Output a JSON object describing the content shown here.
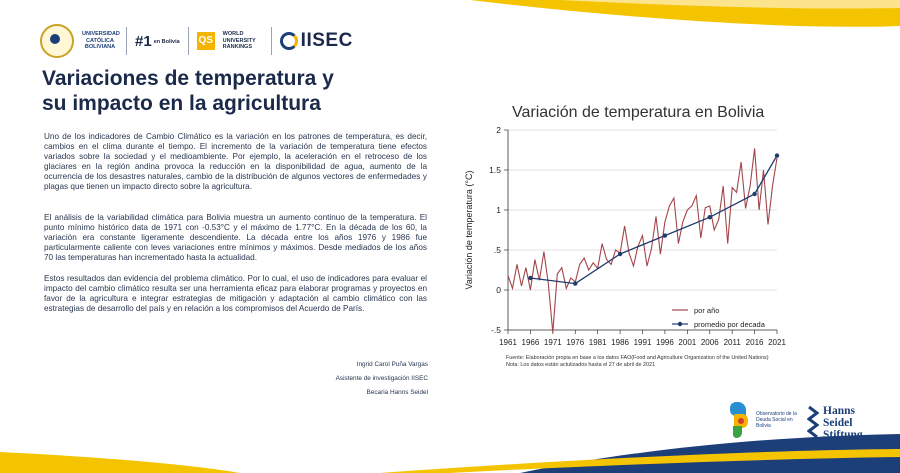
{
  "header": {
    "ucb_name": "UNIVERSIDAD CATÓLICA BOLIVIANA",
    "rank_number": "#1",
    "rank_place": "en Bolivia",
    "qs_badge": "QS",
    "qs_text": "WORLD UNIVERSITY RANKINGS",
    "institute": "IISEC"
  },
  "article": {
    "title_line1": "Variaciones de temperatura y",
    "title_line2": "su impacto en la agricultura",
    "paragraphs": [
      "Uno de los indicadores de Cambio Climático es la variación en los patrones de temperatura, es decir, cambios en el clima durante el tiempo. El incremento de la variación de temperatura tiene efectos variados sobre la sociedad y el medioambiente. Por ejemplo, la aceleración en el retroceso de los glaciares en la región andina provoca la reducción en la disponibilidad de agua, aumento de la ocurrencia de los desastres naturales, cambio de la distribución de algunos vectores de enfermedades y plagas que tienen un impacto directo sobre la agricultura.",
      "El análisis de la variabilidad climática para Bolivia muestra un aumento continuo de la temperatura. El punto mínimo histórico data de 1971 con -0.53°C y el máximo de 1.77°C. En la década de los 60, la variación era constante ligeramente descendiente. La década entre los años 1976 y 1986 fue particularmente caliente con leves variaciones entre mínimos y máximos. Desde mediados de los años 70 las temperaturas han incrementado hasta la actualidad.",
      "Estos resultados dan evidencia del problema climático. Por lo cual, el uso de indicadores para evaluar el impacto del cambio climático resulta ser una herramienta eficaz para elaborar programas y proyectos en favor de la agricultura e integrar estrategias de mitigación y adaptación al cambio climático con las estrategias de desarrollo del país y en relación a los compromisos del Acuerdo de París."
    ],
    "author": "Ingrid Carol Puña Vargas",
    "role": "Asistente de investigación IISEC",
    "fellowship": "Becaria Hanns Seidel"
  },
  "chart_data": {
    "type": "line",
    "title": "Variación de temperatura en Bolivia",
    "xlabel": "",
    "ylabel": "Variación de temperatura (°C)",
    "xlim": [
      1961,
      2021
    ],
    "ylim": [
      -0.5,
      2
    ],
    "xticks": [
      1961,
      1966,
      1971,
      1976,
      1981,
      1986,
      1991,
      1996,
      2001,
      2006,
      2011,
      2016,
      2021
    ],
    "yticks": [
      -0.5,
      0,
      0.5,
      1,
      1.5,
      2
    ],
    "ytick_labels": [
      "-.5",
      "0",
      ".5",
      "1",
      "1.5",
      "2"
    ],
    "legend_position": "bottom-right",
    "series": [
      {
        "name": "por año",
        "style": "line",
        "color": "#a3454a",
        "x": [
          1961,
          1962,
          1963,
          1964,
          1965,
          1966,
          1967,
          1968,
          1969,
          1970,
          1971,
          1972,
          1973,
          1974,
          1975,
          1976,
          1977,
          1978,
          1979,
          1980,
          1981,
          1982,
          1983,
          1984,
          1985,
          1986,
          1987,
          1988,
          1989,
          1990,
          1991,
          1992,
          1993,
          1994,
          1995,
          1996,
          1997,
          1998,
          1999,
          2000,
          2001,
          2002,
          2003,
          2004,
          2005,
          2006,
          2007,
          2008,
          2009,
          2010,
          2011,
          2012,
          2013,
          2014,
          2015,
          2016,
          2017,
          2018,
          2019,
          2020,
          2021
        ],
        "values": [
          0.18,
          0.02,
          0.32,
          0.05,
          0.28,
          0.0,
          0.38,
          0.12,
          0.48,
          0.08,
          -0.53,
          0.2,
          0.28,
          0.02,
          0.15,
          0.1,
          0.32,
          0.4,
          0.25,
          0.34,
          0.27,
          0.58,
          0.38,
          0.32,
          0.5,
          0.46,
          0.8,
          0.46,
          0.3,
          0.55,
          0.68,
          0.3,
          0.52,
          0.92,
          0.45,
          0.85,
          1.05,
          1.15,
          0.58,
          0.85,
          1.0,
          1.05,
          1.18,
          0.65,
          1.03,
          1.05,
          0.75,
          0.88,
          1.3,
          0.58,
          1.28,
          1.22,
          1.6,
          1.02,
          1.3,
          1.77,
          1.0,
          1.5,
          0.82,
          1.3,
          1.65
        ]
      },
      {
        "name": "promedio por decada",
        "style": "line-markers",
        "color": "#1f3c6e",
        "x": [
          1966,
          1976,
          1986,
          1996,
          2006,
          2016,
          2021
        ],
        "values": [
          0.15,
          0.08,
          0.45,
          0.68,
          0.91,
          1.2,
          1.68
        ]
      }
    ],
    "source_note": "Fuente: Elaboración propia en base a los datos FAO(Food and Agriculture Organization of the United Nations)",
    "update_note": "Nota: Los datos están  actulizados hasta el 27 de abril de 2021"
  },
  "footer": {
    "observatory": "Observatorio de la Deuda Social en Bolivia",
    "foundation_line1": "Hanns",
    "foundation_line2": "Seidel",
    "foundation_line3": "Stiftung"
  },
  "colors": {
    "navy": "#1b2a4a",
    "accent_yellow": "#f5c400",
    "accent_blue": "#1c3f7a"
  }
}
